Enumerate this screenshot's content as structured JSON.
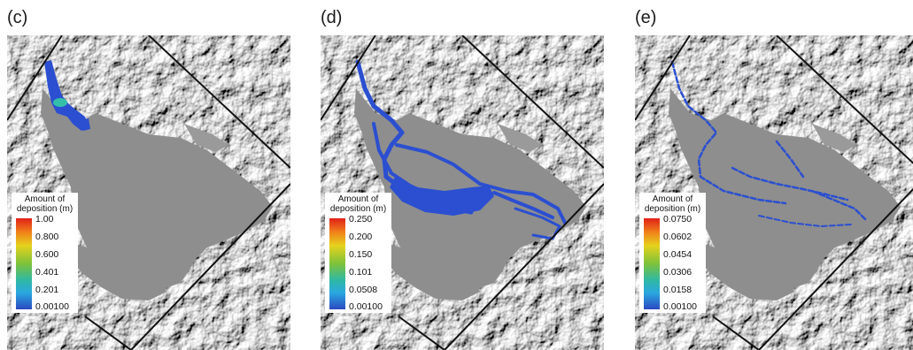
{
  "panels": [
    {
      "label": "(c)",
      "legend": {
        "title_line1": "Amount of",
        "title_line2": "deposition (m)",
        "ticks": [
          "1.00",
          "0.800",
          "0.600",
          "0.401",
          "0.201",
          "0.00100"
        ]
      }
    },
    {
      "label": "(d)",
      "legend": {
        "title_line1": "Amount of",
        "title_line2": "deposition (m)",
        "ticks": [
          "0.250",
          "0.200",
          "0.150",
          "0.101",
          "0.0508",
          "0.00100"
        ]
      }
    },
    {
      "label": "(e)",
      "legend": {
        "title_line1": "Amount of",
        "title_line2": "deposition (m)",
        "ticks": [
          "0.0750",
          "0.0602",
          "0.0454",
          "0.0306",
          "0.0158",
          "0.00100"
        ]
      }
    }
  ],
  "colors": {
    "terrain_light": "#d6d6d6",
    "terrain_shadow": "#3a3a3a",
    "valley_floor": "#8e8e8e",
    "deposition": "#2b4fd0",
    "deposition_peak": "#34c0a8"
  }
}
